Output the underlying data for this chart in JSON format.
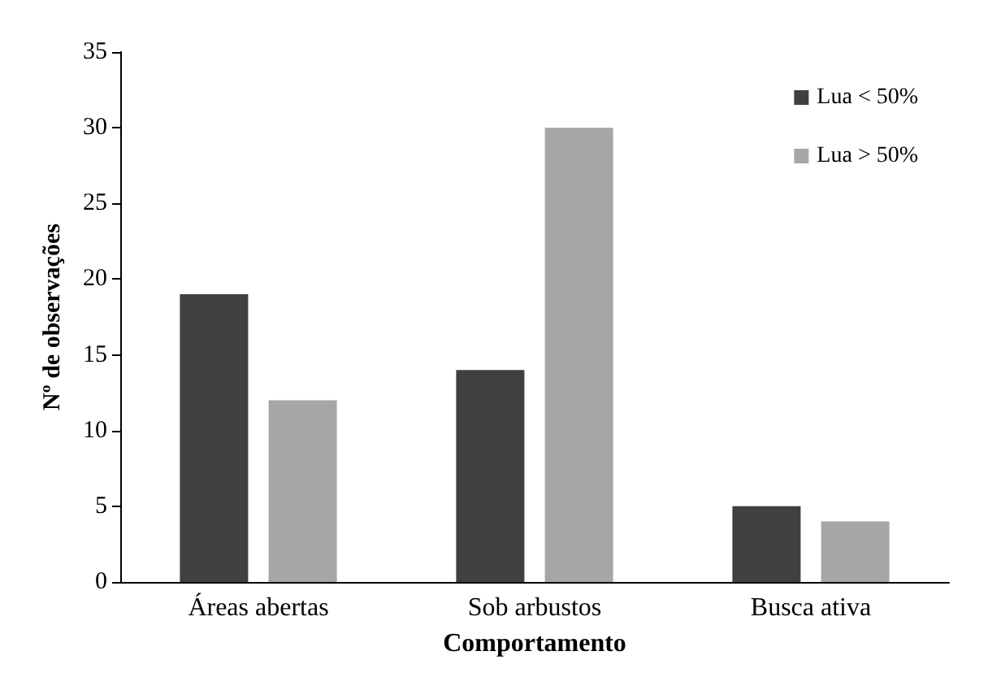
{
  "chart_data": {
    "type": "bar",
    "xlabel": "Comportamento",
    "ylabel": "Nº de observações",
    "categories": [
      "Áreas abertas",
      "Sob arbustos",
      "Busca ativa"
    ],
    "series": [
      {
        "name": "Lua < 50%",
        "color": "#404040",
        "values": [
          19,
          14,
          5
        ]
      },
      {
        "name": "Lua > 50%",
        "color": "#a6a6a6",
        "values": [
          12,
          30,
          4
        ]
      }
    ],
    "ylim": [
      0,
      35
    ],
    "yticks": [
      0,
      5,
      10,
      15,
      20,
      25,
      30,
      35
    ],
    "grid": false,
    "legend": "top right"
  }
}
